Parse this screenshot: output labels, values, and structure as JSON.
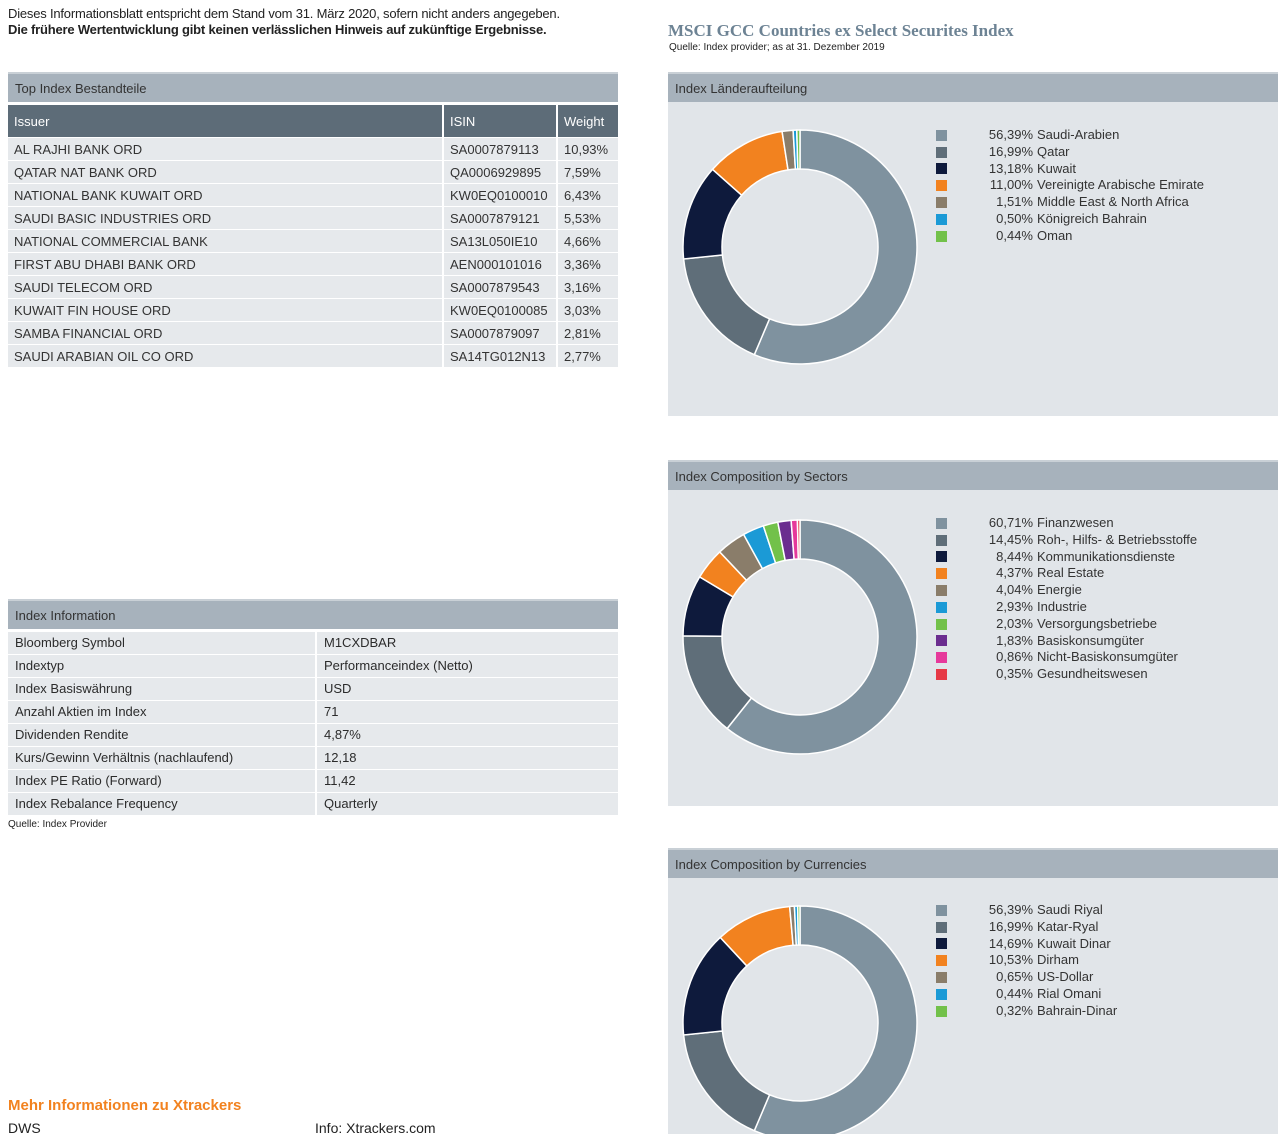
{
  "disclaimer": {
    "line1": "Dieses Informationsblatt entspricht dem Stand vom 31. März 2020, sofern nicht anders angegeben.",
    "line2": "Die frühere Wertentwicklung gibt keinen verlässlichen Hinweis auf zukünftige Ergebnisse."
  },
  "index": {
    "title": "MSCI GCC Countries ex Select Securites Index",
    "source": "Quelle: Index provider; as at 31. Dezember 2019"
  },
  "top_holdings": {
    "heading": "Top Index Bestandteile",
    "columns": [
      "Issuer",
      "ISIN",
      "Weight"
    ],
    "rows": [
      [
        "AL RAJHI BANK ORD",
        "SA0007879113",
        "10,93%"
      ],
      [
        "QATAR NAT BANK ORD",
        "QA0006929895",
        "7,59%"
      ],
      [
        "NATIONAL BANK KUWAIT ORD",
        "KW0EQ0100010",
        "6,43%"
      ],
      [
        "SAUDI BASIC INDUSTRIES ORD",
        "SA0007879121",
        "5,53%"
      ],
      [
        "NATIONAL COMMERCIAL BANK",
        "SA13L050IE10",
        "4,66%"
      ],
      [
        "FIRST ABU DHABI BANK ORD",
        "AEN000101016",
        "3,36%"
      ],
      [
        "SAUDI TELECOM ORD",
        "SA0007879543",
        "3,16%"
      ],
      [
        "KUWAIT FIN HOUSE ORD",
        "KW0EQ0100085",
        "3,03%"
      ],
      [
        "SAMBA FINANCIAL ORD",
        "SA0007879097",
        "2,81%"
      ],
      [
        "SAUDI ARABIAN OIL CO ORD",
        "SA14TG012N13",
        "2,77%"
      ]
    ]
  },
  "index_info": {
    "heading": "Index Information",
    "rows": [
      [
        "Bloomberg Symbol",
        "M1CXDBAR"
      ],
      [
        "Indextyp",
        "Performanceindex (Netto)"
      ],
      [
        "Index Basiswährung",
        "USD"
      ],
      [
        "Anzahl Aktien im Index",
        "71"
      ],
      [
        "Dividenden Rendite",
        "4,87%"
      ],
      [
        "Kurs/Gewinn Verhältnis (nachlaufend)",
        "12,18"
      ],
      [
        "Index PE Ratio (Forward)",
        "11,42"
      ],
      [
        "Index Rebalance Frequency",
        "Quarterly"
      ]
    ],
    "source": "Quelle: Index  Provider"
  },
  "footer": {
    "more_title": "Mehr Informationen zu Xtrackers",
    "dws": "DWS",
    "info": "Info: Xtrackers.com"
  },
  "chart_data": [
    {
      "type": "pie",
      "title": "Index  Länderaufteilung",
      "labels": [
        "Saudi-Arabien",
        "Qatar",
        "Kuwait",
        "Vereinigte Arabische Emirate",
        "Middle East & North Africa",
        "Königreich Bahrain",
        "Oman"
      ],
      "values": [
        56.39,
        16.99,
        13.18,
        11.0,
        1.51,
        0.5,
        0.44
      ],
      "value_labels": [
        "56,39%",
        "16,99%",
        "13,18%",
        "11,00%",
        "1,51%",
        "0,50%",
        "0,44%"
      ],
      "colors": [
        "#7f929f",
        "#5f6e79",
        "#0e1a3c",
        "#f2821f",
        "#8a7d6a",
        "#1b9ad6",
        "#72c14a"
      ]
    },
    {
      "type": "pie",
      "title": "Index  Composition by Sectors",
      "labels": [
        "Finanzwesen",
        "Roh-, Hilfs- & Betriebsstoffe",
        "Kommunikationsdienste",
        "Real Estate",
        "Energie",
        "Industrie",
        "Versorgungsbetriebe",
        "Basiskonsumgüter",
        "Nicht-Basiskonsumgüter",
        "Gesundheitswesen"
      ],
      "values": [
        60.71,
        14.45,
        8.44,
        4.37,
        4.04,
        2.93,
        2.03,
        1.83,
        0.86,
        0.35
      ],
      "value_labels": [
        "60,71%",
        "14,45%",
        "8,44%",
        "4,37%",
        "4,04%",
        "2,93%",
        "2,03%",
        "1,83%",
        "0,86%",
        "0,35%"
      ],
      "colors": [
        "#7f929f",
        "#5f6e79",
        "#0e1a3c",
        "#f2821f",
        "#8a7d6a",
        "#1b9ad6",
        "#72c14a",
        "#6b2d8f",
        "#e6399b",
        "#e63946"
      ]
    },
    {
      "type": "pie",
      "title": "Index  Composition by Currencies",
      "labels": [
        "Saudi Riyal",
        "Katar-Ryal",
        "Kuwait Dinar",
        "Dirham",
        "US-Dollar",
        "Rial Omani",
        "Bahrain-Dinar"
      ],
      "values": [
        56.39,
        16.99,
        14.69,
        10.53,
        0.65,
        0.44,
        0.32
      ],
      "value_labels": [
        "56,39%",
        "16,99%",
        "14,69%",
        "10,53%",
        "0,65%",
        "0,44%",
        "0,32%"
      ],
      "colors": [
        "#7f929f",
        "#5f6e79",
        "#0e1a3c",
        "#f2821f",
        "#8a7d6a",
        "#1b9ad6",
        "#72c14a"
      ]
    }
  ]
}
